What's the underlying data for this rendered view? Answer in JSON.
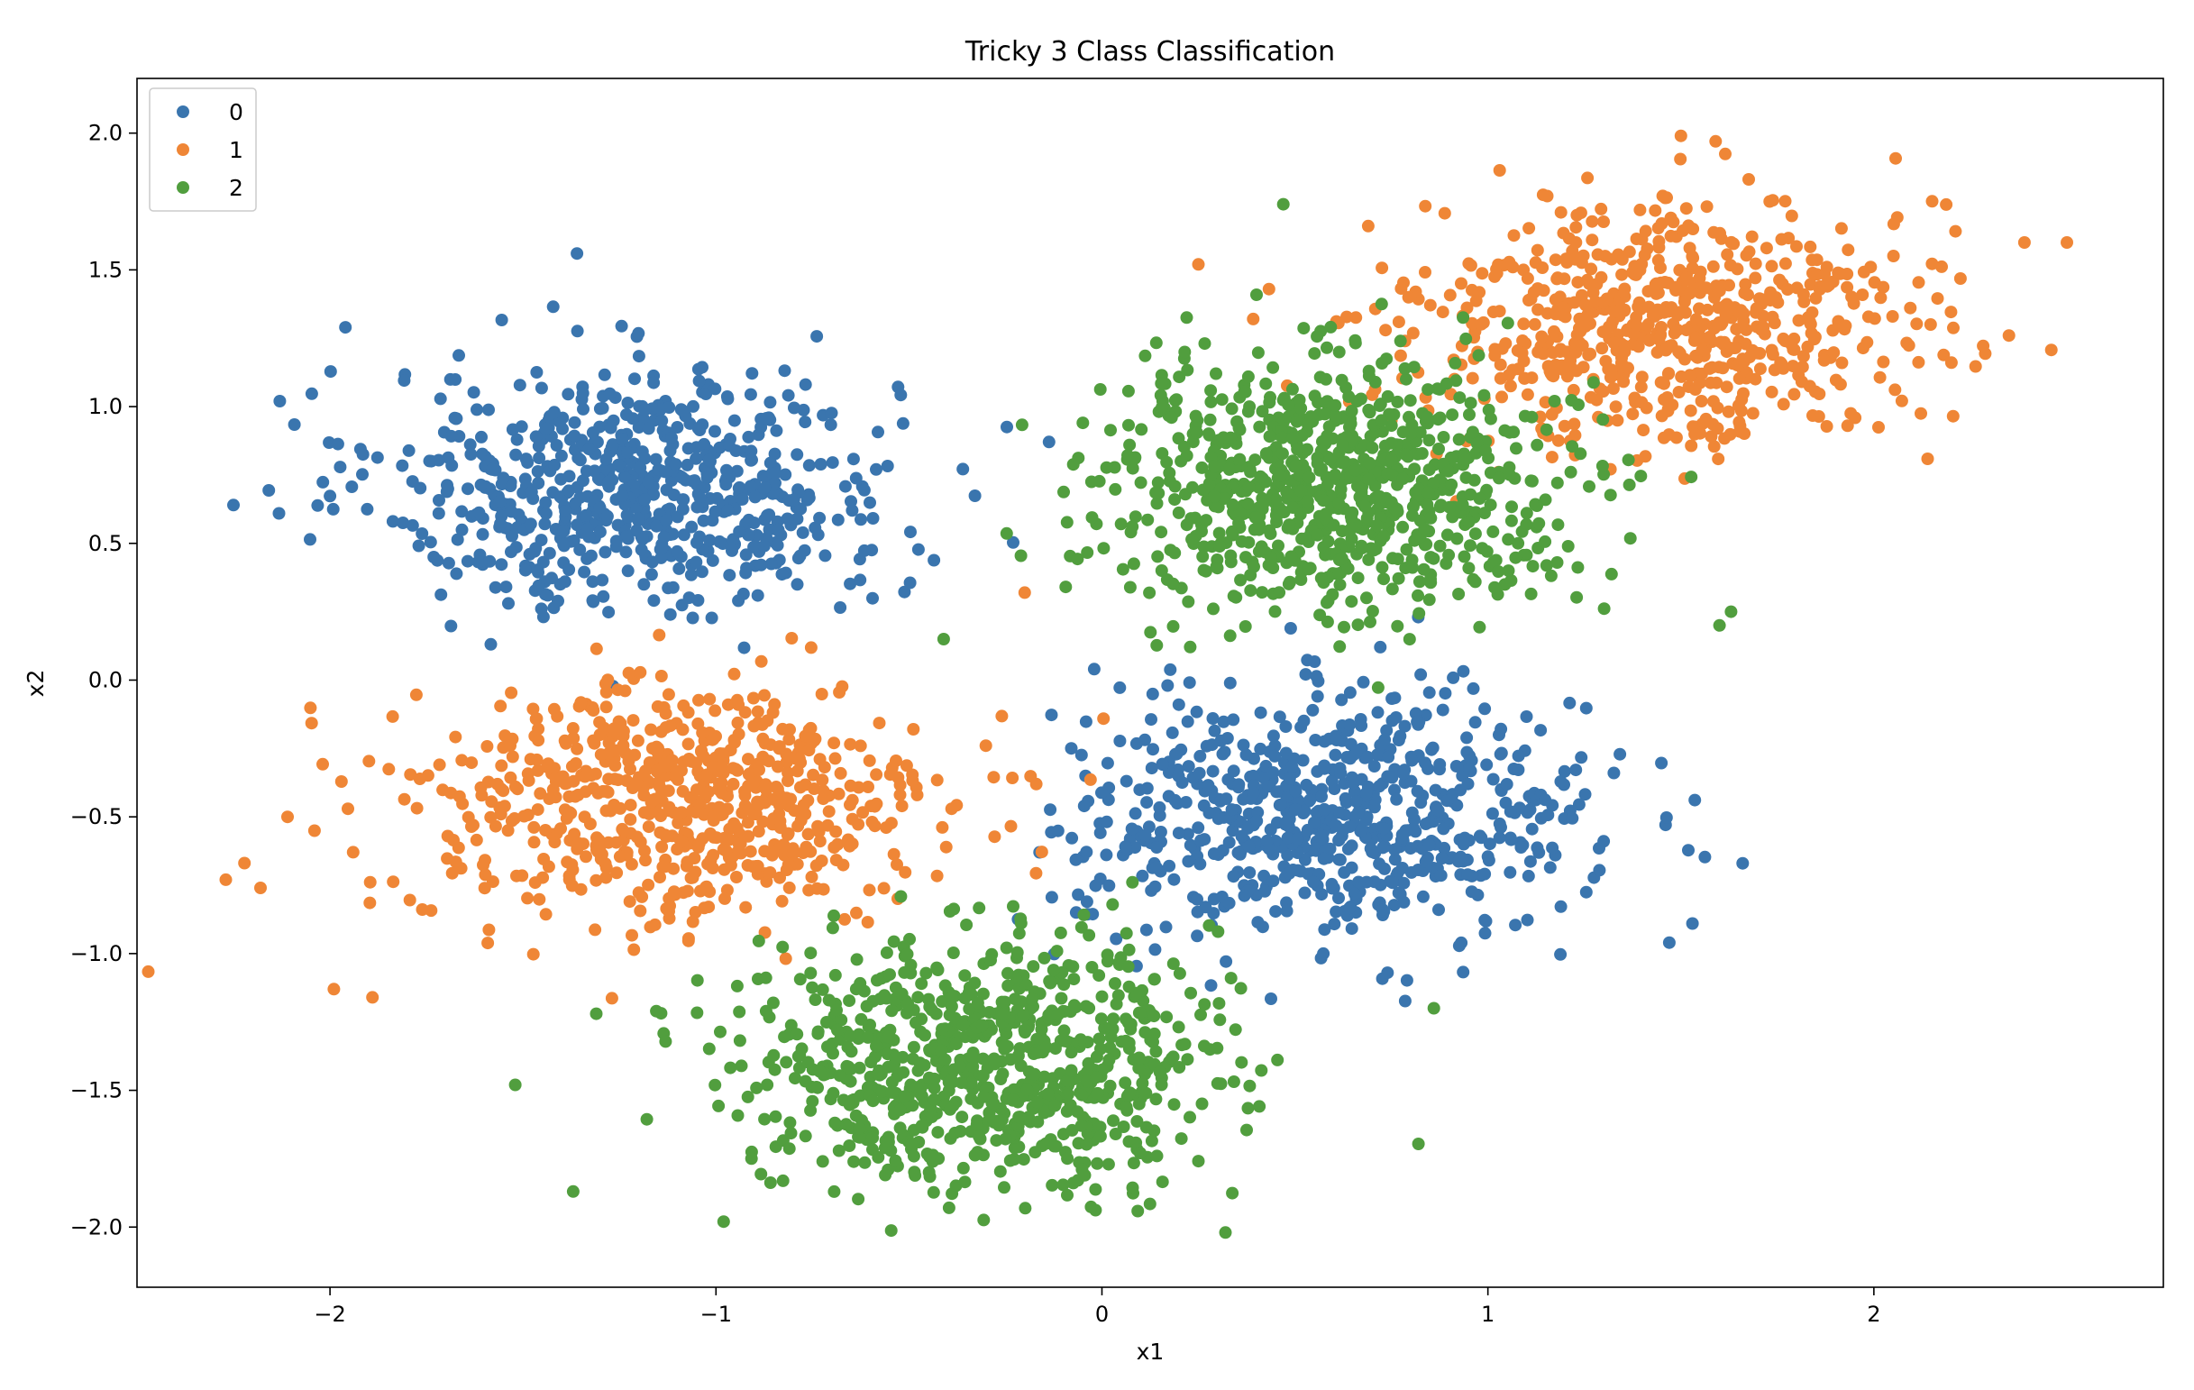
{
  "chart_data": {
    "type": "scatter",
    "title": "Tricky 3 Class Classification",
    "xlabel": "x1",
    "ylabel": "x2",
    "xlim": [
      -2.5,
      2.75
    ],
    "ylim": [
      -2.22,
      2.2
    ],
    "xticks": [
      -2,
      -1,
      0,
      1,
      2
    ],
    "xtick_labels": [
      "−2",
      "−1",
      "0",
      "1",
      "2"
    ],
    "yticks": [
      2.0,
      1.5,
      1.0,
      0.5,
      0.0,
      -0.5,
      -1.0,
      -1.5,
      -2.0
    ],
    "ytick_labels": [
      "2.0",
      "1.5",
      "1.0",
      "0.5",
      "0.0",
      "−0.5",
      "−1.0",
      "−1.5",
      "−2.0"
    ],
    "grid": false,
    "legend_position": "top-left",
    "series": [
      {
        "name": "0",
        "color": "#3a75ae",
        "clusters": [
          {
            "center": [
              -1.2,
              0.7
            ],
            "spread": [
              0.33,
              0.22
            ],
            "count": 700
          },
          {
            "center": [
              0.6,
              -0.5
            ],
            "spread": [
              0.33,
              0.22
            ],
            "count": 700
          }
        ],
        "points": [
          [
            -2.25,
            0.64
          ],
          [
            -1.96,
            1.29
          ],
          [
            -1.36,
            1.56
          ],
          [
            -2.13,
            1.02
          ],
          [
            1.66,
            -0.67
          ],
          [
            1.47,
            -0.96
          ],
          [
            1.53,
            -0.89
          ],
          [
            0.74,
            -1.07
          ],
          [
            0.17,
            -0.02
          ],
          [
            -0.02,
            0.04
          ]
        ]
      },
      {
        "name": "1",
        "color": "#ef8636",
        "clusters": [
          {
            "center": [
              -1.1,
              -0.45
            ],
            "spread": [
              0.35,
              0.22
            ],
            "count": 700
          },
          {
            "center": [
              1.45,
              1.3
            ],
            "spread": [
              0.32,
              0.22
            ],
            "count": 700
          }
        ],
        "points": [
          [
            -2.27,
            -0.73
          ],
          [
            -2.18,
            -0.76
          ],
          [
            -2.11,
            -0.5
          ],
          [
            -1.99,
            -1.13
          ],
          [
            -1.89,
            -1.16
          ],
          [
            2.39,
            1.6
          ],
          [
            2.5,
            1.6
          ],
          [
            2.35,
            1.26
          ],
          [
            1.5,
            1.99
          ],
          [
            1.59,
            1.97
          ],
          [
            0.69,
            1.66
          ],
          [
            0.25,
            1.52
          ],
          [
            -0.2,
            0.32
          ]
        ]
      },
      {
        "name": "2",
        "color": "#519e3e",
        "clusters": [
          {
            "center": [
              -0.3,
              -1.4
            ],
            "spread": [
              0.3,
              0.22
            ],
            "count": 850
          },
          {
            "center": [
              0.6,
              0.72
            ],
            "spread": [
              0.3,
              0.22
            ],
            "count": 850
          }
        ],
        "points": [
          [
            -1.37,
            -1.87
          ],
          [
            -0.98,
            -1.98
          ],
          [
            0.32,
            -2.02
          ],
          [
            0.47,
            1.74
          ],
          [
            -1.52,
            -1.48
          ],
          [
            -1.31,
            -1.22
          ],
          [
            1.63,
            0.25
          ],
          [
            1.6,
            0.2
          ],
          [
            0.86,
            -1.2
          ],
          [
            -0.41,
            0.15
          ]
        ]
      }
    ]
  }
}
